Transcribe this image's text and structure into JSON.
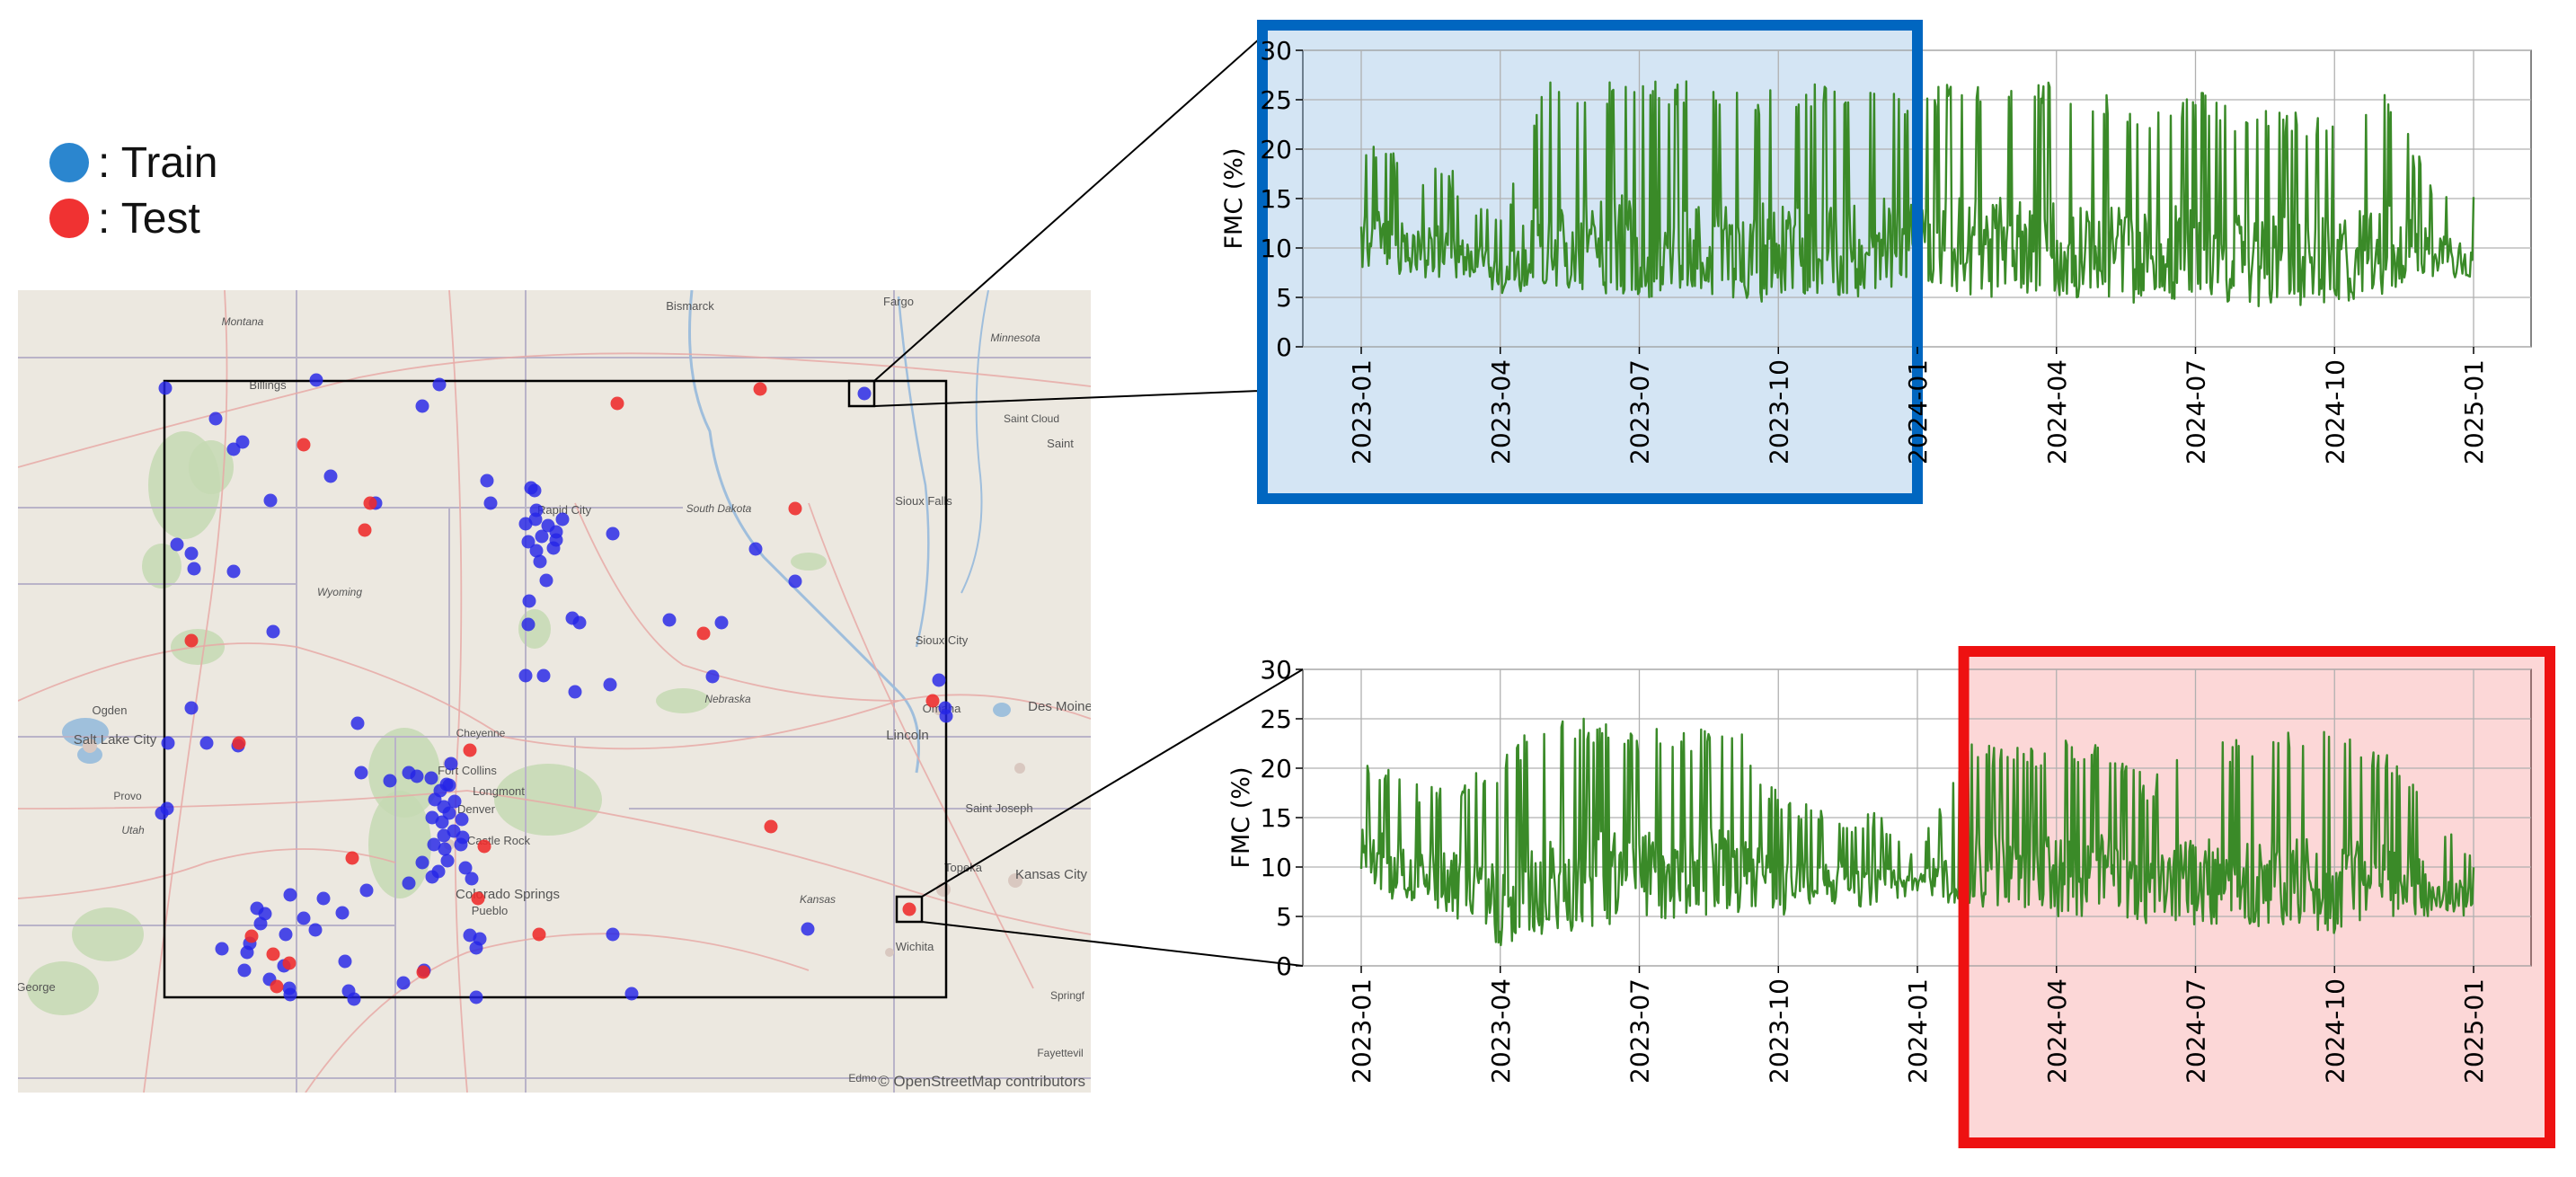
{
  "legend": {
    "train": {
      "label": ": Train",
      "color": "#2b86cf"
    },
    "test": {
      "label": ": Test",
      "color": "#f03232"
    }
  },
  "map": {
    "attribution": "© OpenStreetMap contributors",
    "place_labels": [
      "Montana",
      "Billings",
      "Bismarck",
      "Fargo",
      "Minnesota",
      "Saint Cloud",
      "Saint",
      "Rapid City",
      "South Dakota",
      "Sioux Falls",
      "Wyoming",
      "Sioux City",
      "Nebraska",
      "Ogden",
      "Salt Lake City",
      "Cheyenne",
      "Omaha",
      "Des Moine",
      "Lincoln",
      "Fort Collins",
      "Longmont",
      "Denver",
      "Castle Rock",
      "Provo",
      "Utah",
      "Saint Joseph",
      "Colorado Springs",
      "Topeka",
      "Kansas City",
      "Pueblo",
      "Kansas",
      "Wichita",
      "George",
      "Springf",
      "Fayettevil",
      "Edmo"
    ],
    "colors": {
      "train_dot": "#2424e6",
      "test_dot": "#ee2a2a"
    }
  },
  "chart_data": [
    {
      "type": "line",
      "title": "",
      "xlabel": "",
      "ylabel": "FMC (%)",
      "ylim": [
        0,
        30
      ],
      "yticks": [
        "0",
        "5",
        "10",
        "15",
        "20",
        "25",
        "30"
      ],
      "xticks": [
        "2023-01",
        "2023-04",
        "2023-07",
        "2023-10",
        "2024-01",
        "2024-04",
        "2024-07",
        "2024-10",
        "2025-01"
      ],
      "x_range": [
        "2023-01",
        "2025-01"
      ],
      "grid": true,
      "highlight": {
        "label": "Train",
        "start": "2023-01",
        "end": "2024-01",
        "color": "#0066c0"
      },
      "series": [
        {
          "color": "#3a8a28",
          "shade_color": "#3f7e3a",
          "envelope": [
            [
              "2023-01",
              8,
              22
            ],
            [
              "2023-02",
              7,
              19
            ],
            [
              "2023-03",
              7,
              18
            ],
            [
              "2023-04",
              5,
              13
            ],
            [
              "2023-05",
              6,
              27
            ],
            [
              "2023-06",
              5,
              27
            ],
            [
              "2023-07",
              5,
              27
            ],
            [
              "2023-08",
              5,
              27
            ],
            [
              "2023-09",
              5,
              26
            ],
            [
              "2023-10",
              4,
              26
            ],
            [
              "2023-11",
              5,
              27
            ],
            [
              "2023-12",
              5,
              26
            ],
            [
              "2024-01",
              7,
              26
            ],
            [
              "2024-02",
              5,
              27
            ],
            [
              "2024-03",
              5,
              27
            ],
            [
              "2024-04",
              5,
              27
            ],
            [
              "2024-05",
              5,
              26
            ],
            [
              "2024-06",
              4,
              24
            ],
            [
              "2024-07",
              5,
              26
            ],
            [
              "2024-08",
              4,
              24
            ],
            [
              "2024-09",
              4,
              24
            ],
            [
              "2024-10",
              4,
              23
            ],
            [
              "2024-11",
              5,
              27
            ],
            [
              "2024-12",
              7,
              18
            ],
            [
              "2025-01",
              7,
              16
            ]
          ]
        }
      ]
    },
    {
      "type": "line",
      "title": "",
      "xlabel": "",
      "ylabel": "FMC (%)",
      "ylim": [
        0,
        30
      ],
      "yticks": [
        "0",
        "5",
        "10",
        "15",
        "20",
        "25",
        "30"
      ],
      "xticks": [
        "2023-01",
        "2023-04",
        "2023-07",
        "2023-10",
        "2024-01",
        "2024-04",
        "2024-07",
        "2024-10",
        "2025-01"
      ],
      "x_range": [
        "2023-01",
        "2025-01"
      ],
      "grid": true,
      "highlight": {
        "label": "Test",
        "start": "2024-02",
        "end": "2025-01",
        "color": "#ee1111"
      },
      "series": [
        {
          "color": "#3a8a28",
          "shade_color": "#6b6a2c",
          "envelope": [
            [
              "2023-01",
              8,
              22
            ],
            [
              "2023-02",
              6,
              19
            ],
            [
              "2023-03",
              5,
              19
            ],
            [
              "2023-04",
              2,
              21
            ],
            [
              "2023-05",
              3,
              26
            ],
            [
              "2023-06",
              4,
              25
            ],
            [
              "2023-07",
              4,
              24
            ],
            [
              "2023-08",
              5,
              24
            ],
            [
              "2023-09",
              5,
              25
            ],
            [
              "2023-10",
              5,
              18
            ],
            [
              "2023-11",
              6,
              16
            ],
            [
              "2023-12",
              6,
              16
            ],
            [
              "2024-01",
              7,
              12
            ],
            [
              "2024-02",
              6,
              23
            ],
            [
              "2024-03",
              5,
              22
            ],
            [
              "2024-04",
              5,
              23
            ],
            [
              "2024-05",
              5,
              23
            ],
            [
              "2024-06",
              4,
              19
            ],
            [
              "2024-07",
              4,
              23
            ],
            [
              "2024-08",
              4,
              23
            ],
            [
              "2024-09",
              4,
              24
            ],
            [
              "2024-10",
              3,
              25
            ],
            [
              "2024-11",
              5,
              22
            ],
            [
              "2024-12",
              5,
              17
            ],
            [
              "2025-01",
              5,
              11
            ]
          ]
        }
      ]
    }
  ]
}
